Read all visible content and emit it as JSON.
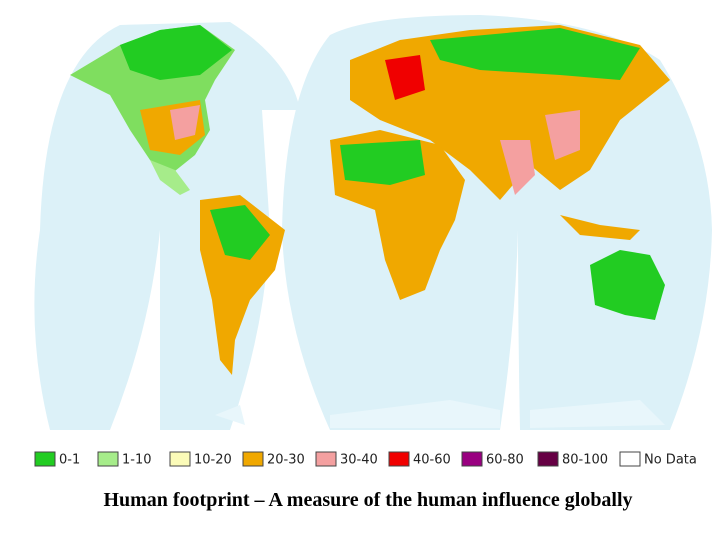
{
  "legend": {
    "items": [
      {
        "label": "0-1",
        "color": "#22cc22"
      },
      {
        "label": "1-10",
        "color": "#a6ec8a"
      },
      {
        "label": "10-20",
        "color": "#fbfbb8"
      },
      {
        "label": "20-30",
        "color": "#f0a800"
      },
      {
        "label": "30-40",
        "color": "#f4a0a0"
      },
      {
        "label": "40-60",
        "color": "#f00000"
      },
      {
        "label": "60-80",
        "color": "#990080"
      },
      {
        "label": "80-100",
        "color": "#660044"
      },
      {
        "label": "No Data",
        "color": "#ffffff"
      }
    ]
  },
  "caption": "Human footprint – A measure of the human influence globally"
}
